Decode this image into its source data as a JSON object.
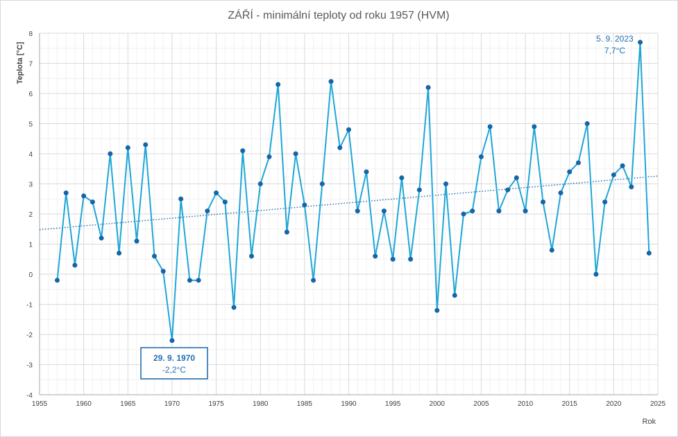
{
  "chart_data": {
    "type": "line",
    "title": "ZÁŘÍ - minimální teploty od roku 1957 (HVM)",
    "xlabel": "Rok",
    "ylabel": "Teplota [°C]",
    "xlim": [
      1955,
      2025
    ],
    "ylim": [
      -4,
      8
    ],
    "xticks": [
      1955,
      1960,
      1965,
      1970,
      1975,
      1980,
      1985,
      1990,
      1995,
      2000,
      2005,
      2010,
      2015,
      2020,
      2025
    ],
    "yticks": [
      -4,
      -3,
      -2,
      -1,
      0,
      1,
      2,
      3,
      4,
      5,
      6,
      7,
      8
    ],
    "grid": true,
    "series": [
      {
        "color": "#1ea6d8",
        "marker_color": "#1565a8",
        "x": [
          1957,
          1958,
          1959,
          1960,
          1961,
          1962,
          1963,
          1964,
          1965,
          1966,
          1967,
          1968,
          1969,
          1970,
          1971,
          1972,
          1973,
          1974,
          1975,
          1976,
          1977,
          1978,
          1979,
          1980,
          1981,
          1982,
          1983,
          1984,
          1985,
          1986,
          1987,
          1988,
          1989,
          1990,
          1991,
          1992,
          1993,
          1994,
          1995,
          1996,
          1997,
          1998,
          1999,
          2000,
          2001,
          2002,
          2003,
          2004,
          2005,
          2006,
          2007,
          2008,
          2009,
          2010,
          2011,
          2012,
          2013,
          2014,
          2015,
          2016,
          2017,
          2018,
          2019,
          2020,
          2021,
          2022,
          2023,
          2024
        ],
        "y": [
          -0.2,
          2.7,
          0.3,
          2.6,
          2.4,
          1.2,
          4.0,
          0.7,
          4.2,
          1.1,
          4.3,
          0.6,
          0.1,
          -2.2,
          2.5,
          -0.2,
          -0.2,
          2.1,
          2.7,
          2.4,
          -1.1,
          4.1,
          0.6,
          3.0,
          3.9,
          6.3,
          1.4,
          4.0,
          2.3,
          -0.2,
          3.0,
          6.4,
          4.2,
          4.8,
          2.1,
          3.4,
          0.6,
          2.1,
          0.5,
          3.2,
          0.5,
          2.8,
          6.2,
          -1.2,
          3.0,
          -0.7,
          2.0,
          2.1,
          3.9,
          4.9,
          2.1,
          2.8,
          3.2,
          2.1,
          4.9,
          2.4,
          0.8,
          2.7,
          3.4,
          3.7,
          5.0,
          0.0,
          2.4,
          3.3,
          3.6,
          2.9,
          7.7,
          0.7
        ]
      }
    ],
    "trendline": {
      "style": "dotted",
      "color": "#1f6fb2",
      "x": [
        1955,
        2025
      ],
      "y": [
        1.48,
        3.26
      ]
    },
    "annotations": [
      {
        "line1": "5. 9. 2023",
        "line2": "7,7°C",
        "boxed": false
      },
      {
        "line1": "29. 9. 1970",
        "line2": "-2,2°C",
        "boxed": true
      }
    ]
  }
}
